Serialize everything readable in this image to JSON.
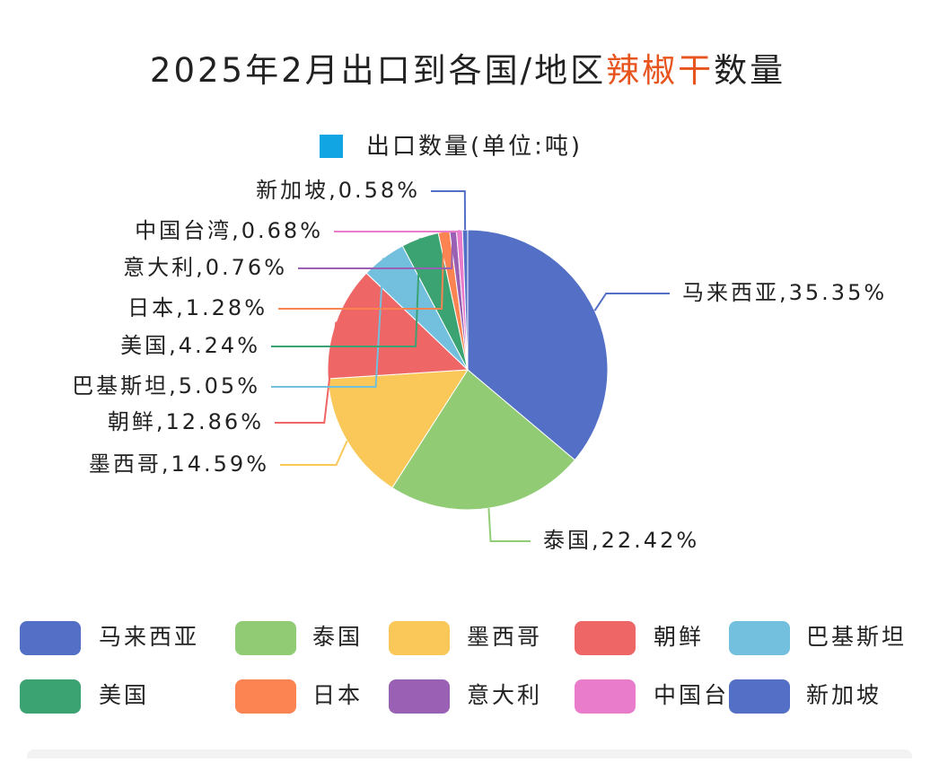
{
  "chart_data": {
    "type": "pie",
    "title": [
      "2025年2月出口到各国/地区",
      "辣椒干",
      "数量"
    ],
    "series": [
      {
        "name": "出口数量(单位:吨)",
        "color": "#12a5e3",
        "values": [
          35.35,
          22.42,
          14.59,
          12.86,
          5.05,
          4.24,
          1.28,
          0.76,
          0.68,
          0.58
        ],
        "value_labels": [
          "马来西亚,35.35%",
          "泰国,22.42%",
          "墨西哥,14.59%",
          "朝鲜,12.86%",
          "巴基斯坦,5.05%",
          "美国,4.24%",
          "日本,1.28%",
          "意大利,0.76%",
          "中国台湾,0.68%",
          "新加坡,0.58%"
        ]
      }
    ],
    "categories": [
      "马来西亚",
      "泰国",
      "墨西哥",
      "朝鲜",
      "巴基斯坦",
      "美国",
      "日本",
      "意大利",
      "中国台湾",
      "新加坡"
    ],
    "colors": [
      "#5470c6",
      "#91cc75",
      "#fac858",
      "#ee6666",
      "#73c0de",
      "#3ba272",
      "#fc8452",
      "#9a60b4",
      "#ea7ccc",
      "#5470c6"
    ]
  }
}
